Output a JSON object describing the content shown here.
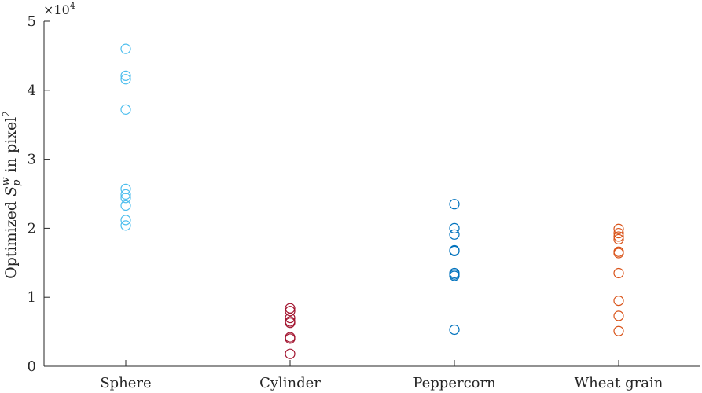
{
  "chart_data": {
    "type": "scatter",
    "categories": [
      "Sphere",
      "Cylinder",
      "Peppercorn",
      "Wheat grain"
    ],
    "ylabel_parts": [
      "Optimized ",
      "S",
      "p",
      "w",
      " in pixel",
      "2"
    ],
    "ylim": [
      0,
      5
    ],
    "y_multiplier": "×10",
    "y_multiplier_exponent": "4",
    "yticks": [
      "0",
      "1",
      "2",
      "3",
      "4",
      "5"
    ],
    "grid": false,
    "legend": "none",
    "series": [
      {
        "category": "Sphere",
        "color": "#4dbeee",
        "values": [
          4.6,
          4.21,
          4.16,
          3.72,
          2.57,
          2.49,
          2.44,
          2.33,
          2.12,
          2.04
        ]
      },
      {
        "category": "Cylinder",
        "color": "#a2142f",
        "values": [
          0.84,
          0.8,
          0.7,
          0.65,
          0.63,
          0.42,
          0.4,
          0.18
        ]
      },
      {
        "category": "Peppercorn",
        "color": "#0072bd",
        "values": [
          2.35,
          2.0,
          1.91,
          1.68,
          1.67,
          1.35,
          1.33,
          1.31,
          0.53
        ]
      },
      {
        "category": "Wheat grain",
        "color": "#d95319",
        "values": [
          1.99,
          1.93,
          1.88,
          1.84,
          1.66,
          1.64,
          1.35,
          0.95,
          0.73,
          0.51
        ]
      }
    ]
  }
}
